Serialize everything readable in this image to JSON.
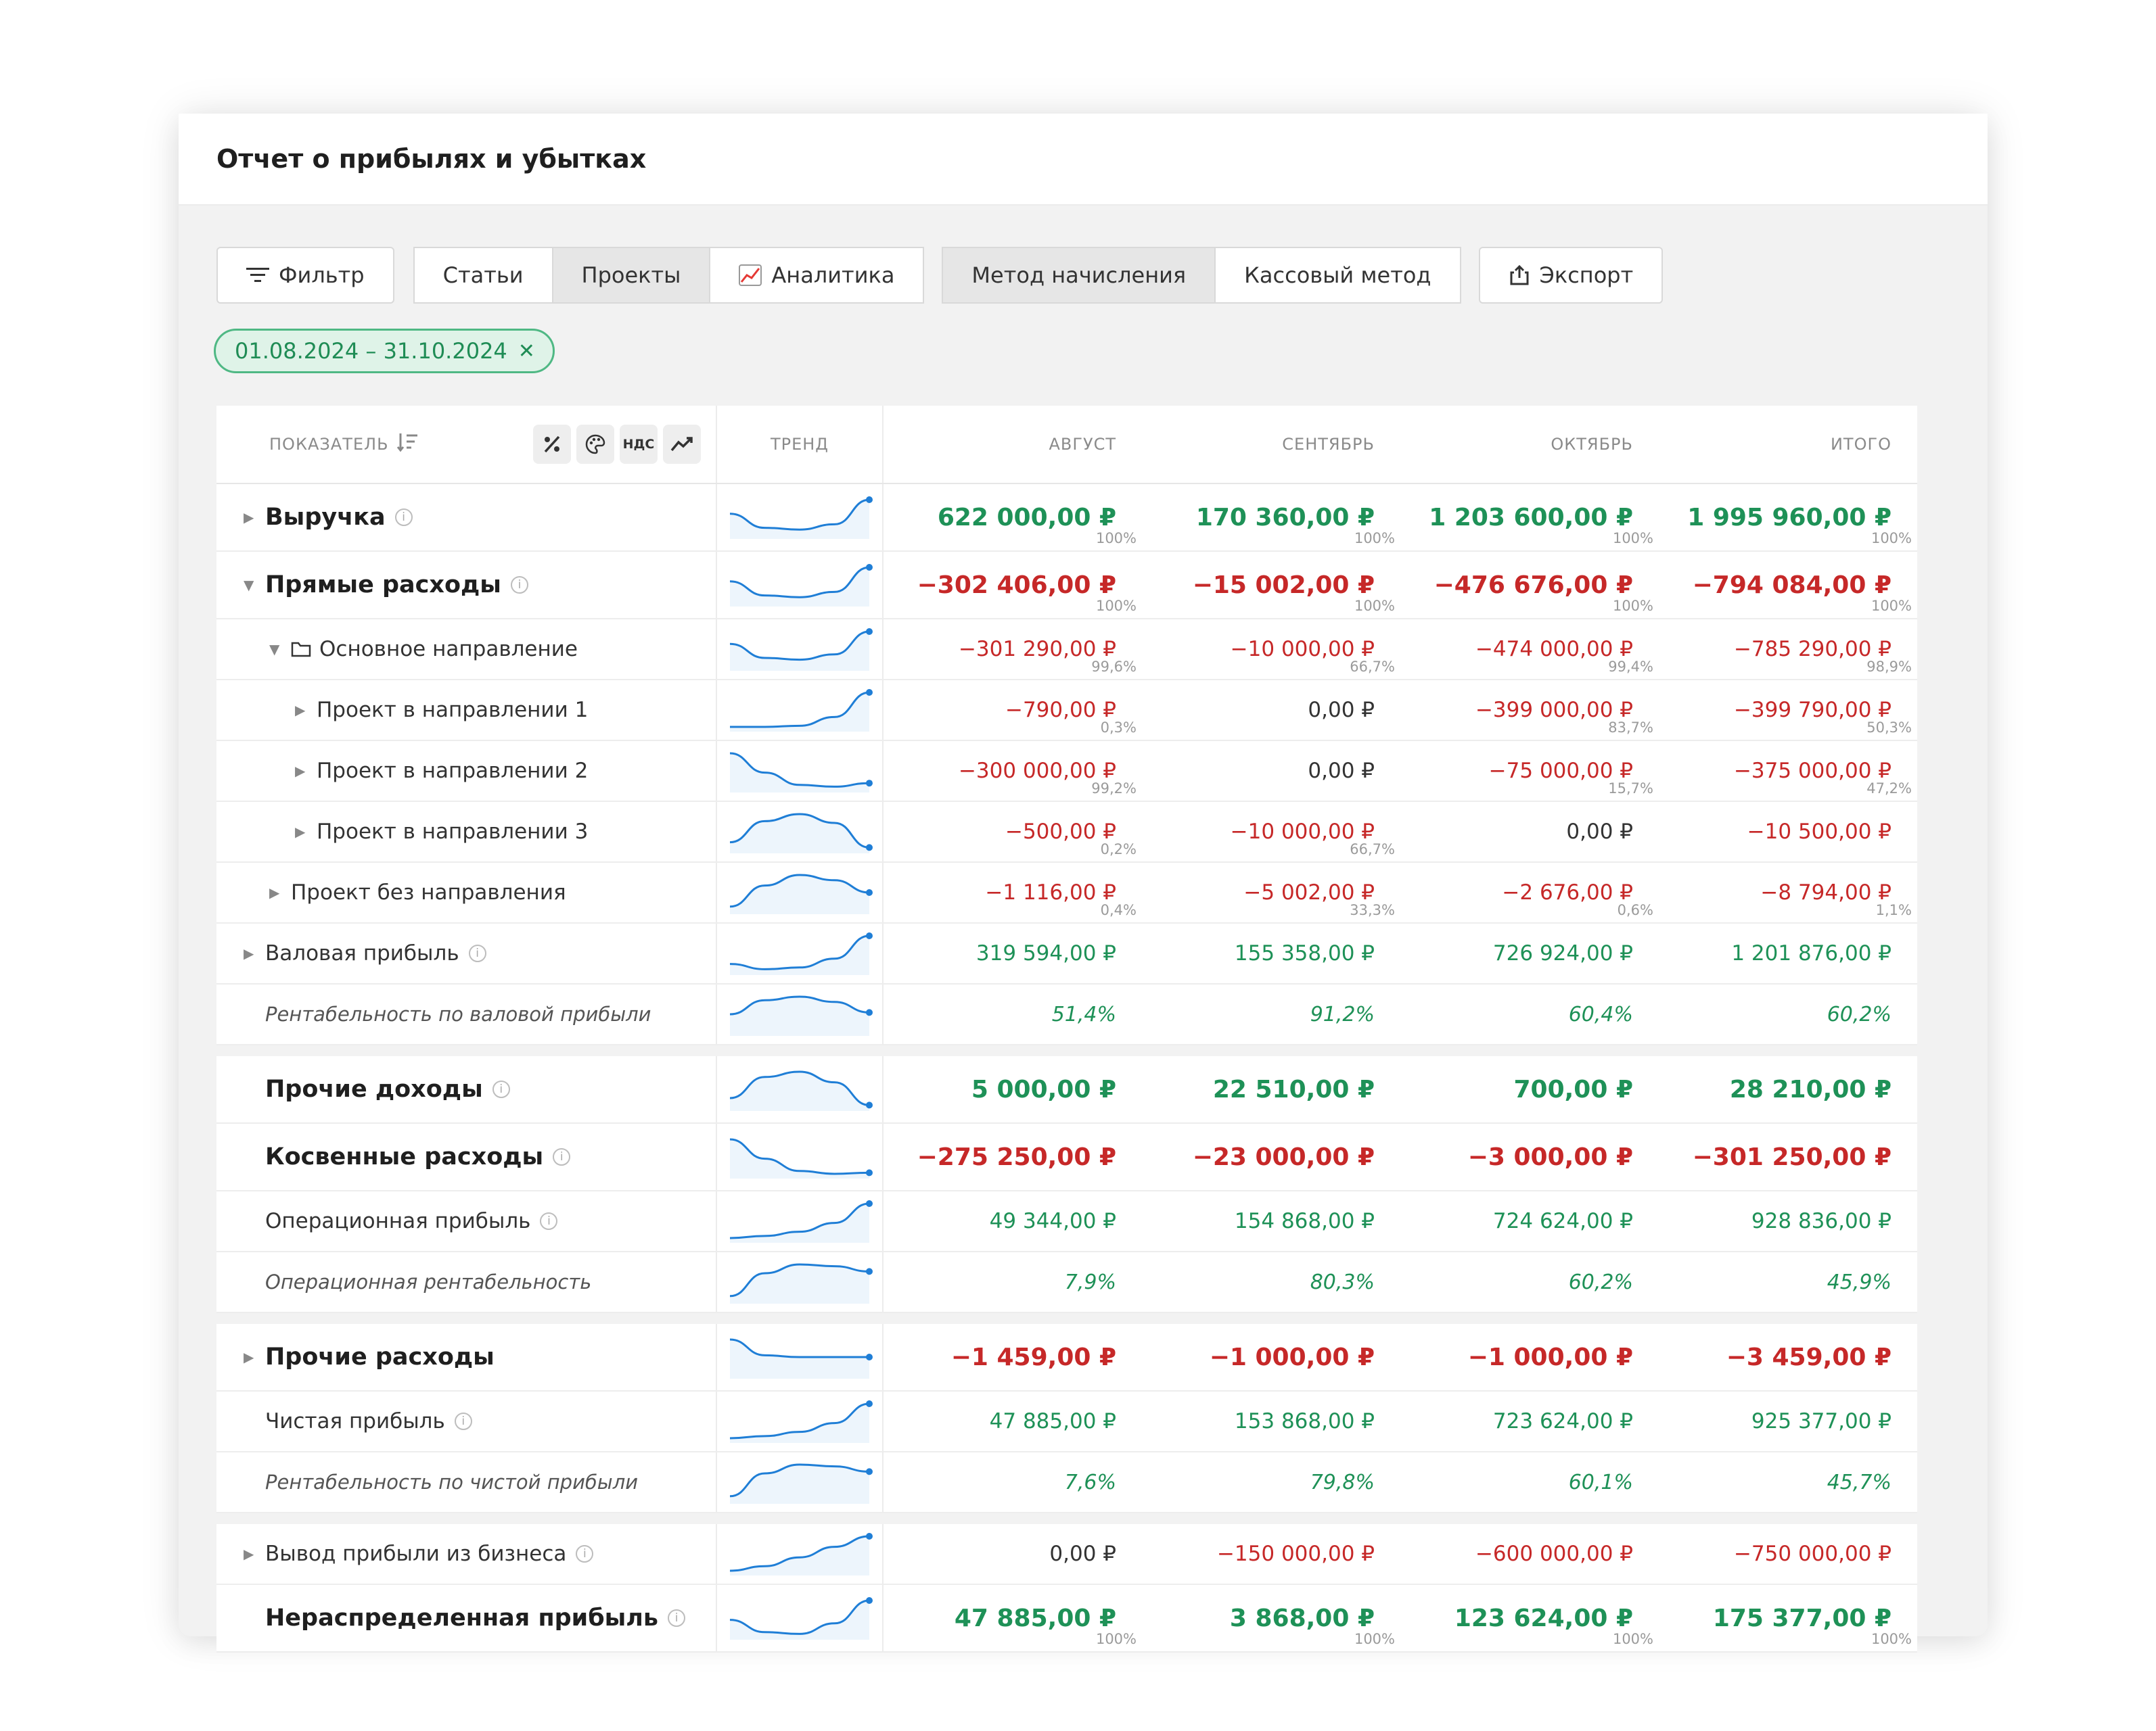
{
  "title": "Отчет о прибылях и убытках",
  "toolbar": {
    "filter": "Фильтр",
    "view_tabs": [
      "Статьи",
      "Проекты",
      "Аналитика"
    ],
    "method_tabs": [
      "Метод начисления",
      "Кассовый метод"
    ],
    "export": "Экспорт"
  },
  "date_chip": "01.08.2024 – 31.10.2024",
  "header": {
    "indicator": "ПОКАЗАТЕЛЬ",
    "trend": "ТРЕНД",
    "months": [
      "АВГУСТ",
      "СЕНТЯБРЬ",
      "ОКТЯБРЬ"
    ],
    "total": "ИТОГО",
    "icon_vat": "НДС"
  },
  "colors": {
    "positive": "#1e9157",
    "negative": "#c62828",
    "trend": "#1f7ed6",
    "chip_border": "#4fb884"
  },
  "rows": [
    {
      "label": "Выручка",
      "style": "bold",
      "indent": 0,
      "expander": "collapsed",
      "info": true,
      "values": [
        "622 000,00 ₽",
        "170 360,00 ₽",
        "1 203 600,00 ₽",
        "1 995 960,00 ₽"
      ],
      "pcts": [
        "100%",
        "100%",
        "100%",
        "100%"
      ],
      "tone": "pos",
      "trend": [
        0.6,
        0.2,
        0.15,
        0.3,
        1
      ]
    },
    {
      "label": "Прямые расходы",
      "style": "bold",
      "indent": 0,
      "expander": "expanded",
      "info": true,
      "values": [
        "−302 406,00 ₽",
        "−15 002,00 ₽",
        "−476 676,00 ₽",
        "−794 084,00 ₽"
      ],
      "pcts": [
        "100%",
        "100%",
        "100%",
        "100%"
      ],
      "tone": "neg",
      "trend": [
        0.6,
        0.2,
        0.15,
        0.3,
        1
      ]
    },
    {
      "label": "Основное направление",
      "style": "norm",
      "indent": 1,
      "expander": "expanded",
      "folder": true,
      "info": false,
      "values": [
        "−301 290,00 ₽",
        "−10 000,00 ₽",
        "−474 000,00 ₽",
        "−785 290,00 ₽"
      ],
      "pcts": [
        "99,6%",
        "66,7%",
        "99,4%",
        "98,9%"
      ],
      "tone": "neg",
      "trend": [
        0.65,
        0.25,
        0.2,
        0.35,
        1
      ]
    },
    {
      "label": "Проект в направлении 1",
      "style": "norm",
      "indent": 2,
      "expander": "collapsed",
      "info": false,
      "values": [
        "−790,00 ₽",
        "0,00 ₽",
        "−399 000,00 ₽",
        "−399 790,00 ₽"
      ],
      "pcts": [
        "0,3%",
        "",
        "83,7%",
        "50,3%"
      ],
      "tone": "neg",
      "trend": [
        0.02,
        0.02,
        0.05,
        0.3,
        1
      ]
    },
    {
      "label": "Проект в направлении 2",
      "style": "norm",
      "indent": 2,
      "expander": "collapsed",
      "info": false,
      "values": [
        "−300 000,00 ₽",
        "0,00 ₽",
        "−75 000,00 ₽",
        "−375 000,00 ₽"
      ],
      "pcts": [
        "99,2%",
        "",
        "15,7%",
        "47,2%"
      ],
      "tone": "neg",
      "trend": [
        1,
        0.45,
        0.1,
        0.05,
        0.15
      ]
    },
    {
      "label": "Проект в направлении 3",
      "style": "norm",
      "indent": 2,
      "expander": "collapsed",
      "info": false,
      "values": [
        "−500,00 ₽",
        "−10 000,00 ₽",
        "0,00 ₽",
        "−10 500,00 ₽"
      ],
      "pcts": [
        "0,2%",
        "66,7%",
        "",
        ""
      ],
      "tone": "neg",
      "trend": [
        0.2,
        0.8,
        1,
        0.75,
        0.05
      ]
    },
    {
      "label": "Проект без направления",
      "style": "norm",
      "indent": 1,
      "expander": "collapsed",
      "info": false,
      "values": [
        "−1 116,00 ₽",
        "−5 002,00 ₽",
        "−2 676,00 ₽",
        "−8 794,00 ₽"
      ],
      "pcts": [
        "0,4%",
        "33,3%",
        "0,6%",
        "1,1%"
      ],
      "tone": "neg",
      "trend": [
        0.1,
        0.7,
        1,
        0.85,
        0.5
      ]
    },
    {
      "label": "Валовая прибыль",
      "style": "norm",
      "indent": 0,
      "expander": "collapsed",
      "info": true,
      "values": [
        "319 594,00 ₽",
        "155 358,00 ₽",
        "726 924,00 ₽",
        "1 201 876,00 ₽"
      ],
      "pcts": [
        "",
        "",
        "",
        ""
      ],
      "tone": "pos",
      "trend": [
        0.2,
        0.05,
        0.1,
        0.35,
        1
      ]
    },
    {
      "label": "Рентабельность по валовой прибыли",
      "style": "ital",
      "indent": 0,
      "expander": "none",
      "info": false,
      "values": [
        "51,4%",
        "91,2%",
        "60,4%",
        "60,2%"
      ],
      "pcts": [
        "",
        "",
        "",
        ""
      ],
      "tone": "pos",
      "trend": [
        0.5,
        0.9,
        1,
        0.85,
        0.55
      ]
    },
    {
      "gap": true
    },
    {
      "label": "Прочие доходы",
      "style": "bold",
      "indent": 0,
      "expander": "none",
      "info": true,
      "values": [
        "5 000,00 ₽",
        "22 510,00 ₽",
        "700,00 ₽",
        "28 210,00 ₽"
      ],
      "pcts": [
        "",
        "",
        "",
        ""
      ],
      "tone": "pos",
      "trend": [
        0.25,
        0.85,
        1,
        0.7,
        0.05
      ]
    },
    {
      "label": "Косвенные расходы",
      "style": "bold",
      "indent": 0,
      "expander": "none",
      "info": true,
      "values": [
        "−275 250,00 ₽",
        "−23 000,00 ₽",
        "−3 000,00 ₽",
        "−301 250,00 ₽"
      ],
      "pcts": [
        "",
        "",
        "",
        ""
      ],
      "tone": "neg",
      "trend": [
        1,
        0.45,
        0.1,
        0.02,
        0.05
      ]
    },
    {
      "label": "Операционная прибыль",
      "style": "norm",
      "indent": 0,
      "expander": "none",
      "info": true,
      "values": [
        "49 344,00 ₽",
        "154 868,00 ₽",
        "724 624,00 ₽",
        "928 836,00 ₽"
      ],
      "pcts": [
        "",
        "",
        "",
        ""
      ],
      "tone": "pos",
      "trend": [
        0.02,
        0.08,
        0.2,
        0.45,
        1
      ]
    },
    {
      "label": "Операционная рентабельность",
      "style": "ital",
      "indent": 0,
      "expander": "none",
      "info": false,
      "values": [
        "7,9%",
        "80,3%",
        "60,2%",
        "45,9%"
      ],
      "pcts": [
        "",
        "",
        "",
        ""
      ],
      "tone": "pos",
      "trend": [
        0.1,
        0.75,
        1,
        0.95,
        0.8
      ]
    },
    {
      "gap": true
    },
    {
      "label": "Прочие расходы",
      "style": "bold",
      "indent": 0,
      "expander": "collapsed",
      "info": false,
      "values": [
        "−1 459,00 ₽",
        "−1 000,00 ₽",
        "−1 000,00 ₽",
        "−3 459,00 ₽"
      ],
      "pcts": [
        "",
        "",
        "",
        ""
      ],
      "tone": "neg",
      "trend": [
        1,
        0.55,
        0.5,
        0.5,
        0.5
      ]
    },
    {
      "label": "Чистая прибыль",
      "style": "norm",
      "indent": 0,
      "expander": "none",
      "info": true,
      "values": [
        "47 885,00 ₽",
        "153 868,00 ₽",
        "723 624,00 ₽",
        "925 377,00 ₽"
      ],
      "pcts": [
        "",
        "",
        "",
        ""
      ],
      "tone": "pos",
      "trend": [
        0.02,
        0.08,
        0.2,
        0.45,
        1
      ]
    },
    {
      "label": "Рентабельность по чистой прибыли",
      "style": "ital",
      "indent": 0,
      "expander": "none",
      "info": false,
      "values": [
        "7,6%",
        "79,8%",
        "60,1%",
        "45,7%"
      ],
      "pcts": [
        "",
        "",
        "",
        ""
      ],
      "tone": "pos",
      "trend": [
        0.1,
        0.75,
        1,
        0.95,
        0.8
      ]
    },
    {
      "gap": true
    },
    {
      "label": "Вывод прибыли из бизнеса",
      "style": "norm",
      "indent": 0,
      "expander": "collapsed",
      "info": true,
      "values": [
        "0,00 ₽",
        "−150 000,00 ₽",
        "−600 000,00 ₽",
        "−750 000,00 ₽"
      ],
      "pcts": [
        "",
        "",
        "",
        ""
      ],
      "tone": "mix",
      "trend": [
        0.02,
        0.15,
        0.4,
        0.7,
        1
      ]
    },
    {
      "label": "Нераспределенная прибыль",
      "style": "bold",
      "indent": 0,
      "expander": "none",
      "info": true,
      "values": [
        "47 885,00 ₽",
        "3 868,00 ₽",
        "123 624,00 ₽",
        "175 377,00 ₽"
      ],
      "pcts": [
        "100%",
        "100%",
        "100%",
        "100%"
      ],
      "tone": "pos",
      "trend": [
        0.45,
        0.1,
        0.05,
        0.35,
        1
      ]
    }
  ]
}
